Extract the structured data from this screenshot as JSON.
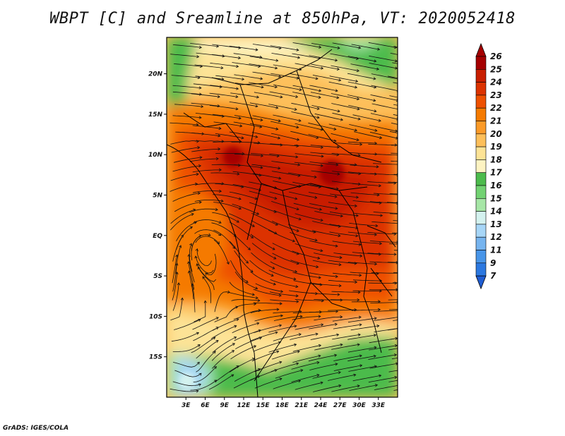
{
  "title": "WBPT [C] and Sreamline at 850hPa, VT: 2020052418",
  "credit": "GrADS: IGES/COLA",
  "map": {
    "lat_range": [
      -20,
      24.5
    ],
    "lon_range": [
      0,
      36
    ],
    "lat_ticks": [
      {
        "value": 20,
        "label": "20N"
      },
      {
        "value": 15,
        "label": "15N"
      },
      {
        "value": 10,
        "label": "10N"
      },
      {
        "value": 5,
        "label": "5N"
      },
      {
        "value": 0,
        "label": "EQ"
      },
      {
        "value": -5,
        "label": "5S"
      },
      {
        "value": -10,
        "label": "10S"
      },
      {
        "value": -15,
        "label": "15S"
      }
    ],
    "lon_ticks": [
      {
        "value": 3,
        "label": "3E"
      },
      {
        "value": 6,
        "label": "6E"
      },
      {
        "value": 9,
        "label": "9E"
      },
      {
        "value": 12,
        "label": "12E"
      },
      {
        "value": 15,
        "label": "15E"
      },
      {
        "value": 18,
        "label": "18E"
      },
      {
        "value": 21,
        "label": "21E"
      },
      {
        "value": 24,
        "label": "24E"
      },
      {
        "value": 27,
        "label": "27E"
      },
      {
        "value": 30,
        "label": "30E"
      },
      {
        "value": 33,
        "label": "33E"
      }
    ]
  },
  "colorbar": {
    "labels": [
      "26",
      "25",
      "24",
      "23",
      "22",
      "21",
      "20",
      "19",
      "18",
      "17",
      "16",
      "15",
      "14",
      "13",
      "12",
      "11",
      "9",
      "7"
    ],
    "colors": [
      "#a50000",
      "#c81e00",
      "#dc3200",
      "#ee5000",
      "#f57a00",
      "#fb9a28",
      "#fdbf5a",
      "#fde396",
      "#fdf3c2",
      "#4cbb4c",
      "#72d272",
      "#a6e6a6",
      "#d4f2ef",
      "#a7d6f7",
      "#76b4ef",
      "#4895e8",
      "#2c78e0",
      "#1f5dd2"
    ]
  }
}
